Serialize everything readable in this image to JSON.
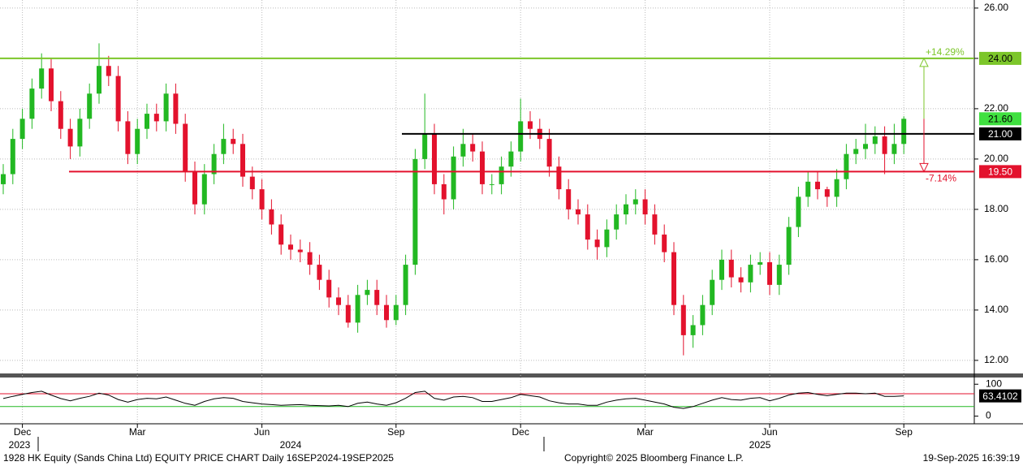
{
  "chart_data": [
    {
      "type": "candlestick",
      "categories": [
        null,
        null,
        "Dec",
        null,
        null,
        null,
        null,
        null,
        null,
        null,
        null,
        null,
        null,
        null,
        "Mar",
        null,
        null,
        null,
        null,
        null,
        null,
        null,
        null,
        null,
        null,
        null,
        null,
        "Jun",
        null,
        null,
        null,
        null,
        null,
        null,
        null,
        null,
        null,
        null,
        null,
        null,
        null,
        "Sep",
        null,
        null,
        null,
        null,
        null,
        null,
        null,
        null,
        null,
        null,
        null,
        null,
        "Dec",
        null,
        null,
        null,
        null,
        null,
        null,
        null,
        null,
        null,
        null,
        null,
        null,
        "Mar",
        null,
        null,
        null,
        null,
        null,
        null,
        null,
        null,
        null,
        null,
        null,
        null,
        "Jun",
        null,
        null,
        null,
        null,
        null,
        null,
        null,
        null,
        null,
        null,
        null,
        null,
        null,
        "Sep"
      ],
      "open": [
        19.0,
        19.4,
        20.8,
        21.6,
        22.8,
        23.6,
        22.3,
        21.2,
        20.5,
        21.6,
        22.6,
        23.7,
        23.3,
        21.5,
        20.2,
        21.2,
        21.8,
        21.5,
        22.6,
        21.4,
        19.5,
        18.2,
        19.4,
        20.2,
        20.8,
        20.6,
        19.3,
        18.8,
        18.0,
        17.4,
        16.6,
        16.4,
        16.3,
        15.8,
        15.2,
        14.5,
        14.2,
        13.5,
        14.6,
        14.8,
        14.2,
        13.6,
        14.2,
        15.8,
        20.0,
        21.0,
        19.0,
        18.4,
        20.1,
        20.6,
        20.3,
        19.0,
        19.0,
        19.7,
        20.3,
        21.5,
        21.2,
        20.8,
        19.7,
        18.8,
        18.0,
        17.8,
        16.8,
        16.5,
        17.2,
        17.8,
        18.2,
        18.4,
        17.8,
        17.0,
        16.3,
        14.2,
        13.0,
        13.4,
        14.2,
        15.2,
        16.0,
        15.3,
        15.1,
        15.8,
        15.9,
        15.0,
        15.8,
        17.3,
        18.5,
        19.1,
        18.8,
        18.5,
        19.2,
        20.2,
        20.4,
        20.6,
        20.9,
        20.2,
        20.6
      ],
      "high": [
        19.8,
        21.2,
        22.0,
        23.2,
        24.2,
        24.0,
        22.7,
        21.6,
        22.0,
        23.0,
        24.6,
        24.1,
        23.7,
        21.9,
        21.6,
        22.2,
        22.2,
        23.0,
        23.0,
        21.8,
        19.9,
        19.8,
        20.6,
        21.4,
        21.2,
        21.0,
        19.7,
        19.2,
        18.4,
        17.8,
        17.0,
        16.8,
        16.7,
        16.2,
        15.6,
        14.9,
        14.6,
        15.0,
        15.2,
        15.2,
        14.6,
        14.6,
        16.2,
        20.4,
        22.6,
        21.4,
        19.4,
        20.5,
        21.2,
        21.0,
        20.7,
        19.4,
        20.1,
        20.7,
        22.4,
        21.9,
        21.6,
        21.2,
        20.1,
        19.2,
        18.4,
        18.2,
        17.2,
        17.6,
        18.2,
        18.6,
        18.8,
        18.8,
        18.2,
        17.4,
        16.7,
        14.6,
        13.8,
        14.6,
        15.6,
        16.4,
        16.4,
        15.7,
        16.2,
        16.3,
        16.3,
        16.2,
        17.7,
        18.9,
        19.5,
        19.5,
        18.9,
        19.6,
        20.6,
        20.8,
        21.4,
        21.3,
        21.3,
        21.4,
        21.7
      ],
      "low": [
        18.6,
        19.0,
        20.4,
        21.2,
        22.4,
        21.9,
        20.8,
        20.0,
        20.1,
        21.2,
        22.2,
        22.9,
        21.1,
        19.8,
        19.8,
        20.8,
        21.1,
        21.1,
        21.0,
        19.1,
        17.8,
        17.8,
        19.0,
        19.8,
        20.2,
        18.9,
        18.4,
        17.6,
        17.0,
        16.2,
        16.0,
        15.9,
        15.4,
        14.8,
        14.1,
        13.8,
        13.3,
        13.1,
        14.2,
        13.8,
        13.3,
        13.4,
        13.8,
        15.4,
        19.6,
        18.6,
        17.8,
        18.0,
        19.7,
        19.9,
        18.6,
        18.6,
        18.6,
        19.3,
        19.9,
        20.8,
        20.4,
        19.3,
        18.4,
        17.6,
        17.4,
        16.4,
        16.0,
        16.1,
        16.8,
        17.4,
        17.8,
        17.4,
        16.6,
        15.9,
        13.8,
        12.2,
        12.5,
        13.0,
        13.8,
        14.8,
        14.9,
        14.7,
        14.7,
        15.4,
        14.6,
        14.6,
        15.4,
        16.9,
        18.1,
        18.4,
        18.1,
        18.1,
        18.8,
        19.8,
        20.0,
        20.2,
        19.4,
        19.8,
        20.2
      ],
      "close": [
        19.4,
        20.8,
        21.6,
        22.8,
        23.6,
        22.3,
        21.2,
        20.5,
        21.6,
        22.6,
        23.7,
        23.3,
        21.5,
        20.2,
        21.2,
        21.8,
        21.5,
        22.6,
        21.4,
        19.5,
        18.2,
        19.4,
        20.2,
        20.8,
        20.6,
        19.3,
        18.8,
        18.0,
        17.4,
        16.6,
        16.4,
        16.3,
        15.8,
        15.2,
        14.5,
        14.2,
        13.5,
        14.6,
        14.8,
        14.2,
        13.6,
        14.2,
        15.8,
        20.0,
        21.0,
        19.0,
        18.4,
        20.1,
        20.6,
        20.3,
        19.0,
        19.0,
        19.7,
        20.3,
        21.5,
        21.2,
        20.8,
        19.7,
        18.8,
        18.0,
        17.8,
        16.8,
        16.5,
        17.2,
        17.8,
        18.2,
        18.4,
        17.8,
        17.0,
        16.3,
        14.2,
        13.0,
        13.4,
        14.2,
        15.2,
        16.0,
        15.3,
        15.1,
        15.8,
        15.9,
        15.0,
        15.8,
        17.3,
        18.5,
        19.1,
        18.8,
        18.5,
        19.2,
        20.2,
        20.4,
        20.6,
        20.9,
        20.2,
        20.6,
        21.6
      ],
      "up_color": "#22b822",
      "down_color": "#e3122d",
      "ylim": [
        11.48,
        26.32
      ],
      "yticks": [
        {
          "value": 12,
          "label": "12.00"
        },
        {
          "value": 14,
          "label": "14.00"
        },
        {
          "value": 16,
          "label": "16.00"
        },
        {
          "value": 18,
          "label": "18.00"
        },
        {
          "value": 20,
          "label": "20.00"
        },
        {
          "value": 22,
          "label": "22.00"
        },
        {
          "value": 24,
          "label": "24.00"
        },
        {
          "value": 26,
          "label": "26.00"
        }
      ],
      "grid": true,
      "levels": [
        {
          "value": 24,
          "label": "24.00",
          "color": "#7cc62a",
          "change": "+14.29%"
        },
        {
          "value": 21,
          "label": "21.00",
          "color": "#000000"
        },
        {
          "value": 19.5,
          "label": "19.50",
          "color": "#e3122d",
          "change": "-7.14%"
        }
      ],
      "last_label": "21.60",
      "last_color": "#3fe03f"
    },
    {
      "type": "line",
      "values": [
        55,
        62,
        68,
        74,
        78,
        66,
        55,
        48,
        56,
        62,
        72,
        66,
        52,
        44,
        52,
        56,
        54,
        60,
        50,
        40,
        34,
        46,
        54,
        58,
        56,
        46,
        42,
        38,
        36,
        34,
        35,
        36,
        34,
        33,
        32,
        34,
        30,
        40,
        44,
        38,
        34,
        42,
        56,
        74,
        78,
        56,
        50,
        60,
        62,
        58,
        46,
        46,
        52,
        58,
        68,
        64,
        60,
        48,
        42,
        38,
        38,
        34,
        34,
        44,
        50,
        54,
        56,
        50,
        44,
        38,
        28,
        24,
        30,
        40,
        50,
        58,
        52,
        50,
        56,
        58,
        48,
        56,
        66,
        72,
        74,
        68,
        64,
        68,
        72,
        72,
        70,
        72,
        62,
        62,
        63.4102
      ],
      "color": "#000000",
      "ylim": [
        -24,
        121
      ],
      "yticks": [
        0,
        100
      ],
      "bands": [
        {
          "value": 70,
          "color": "#e3122d"
        },
        {
          "value": 30,
          "color": "#22b822"
        }
      ],
      "last_label": "63.4102"
    }
  ],
  "x_axis_years": [
    "2023",
    "2024",
    "2025"
  ],
  "footer": {
    "left": "1928 HK Equity (Sands China Ltd) EQUITY PRICE CHART  Daily 16SEP2024-19SEP2025",
    "center": "Copyright© 2025 Bloomberg Finance L.P.",
    "right": "19-Sep-2025 16:39:19"
  }
}
